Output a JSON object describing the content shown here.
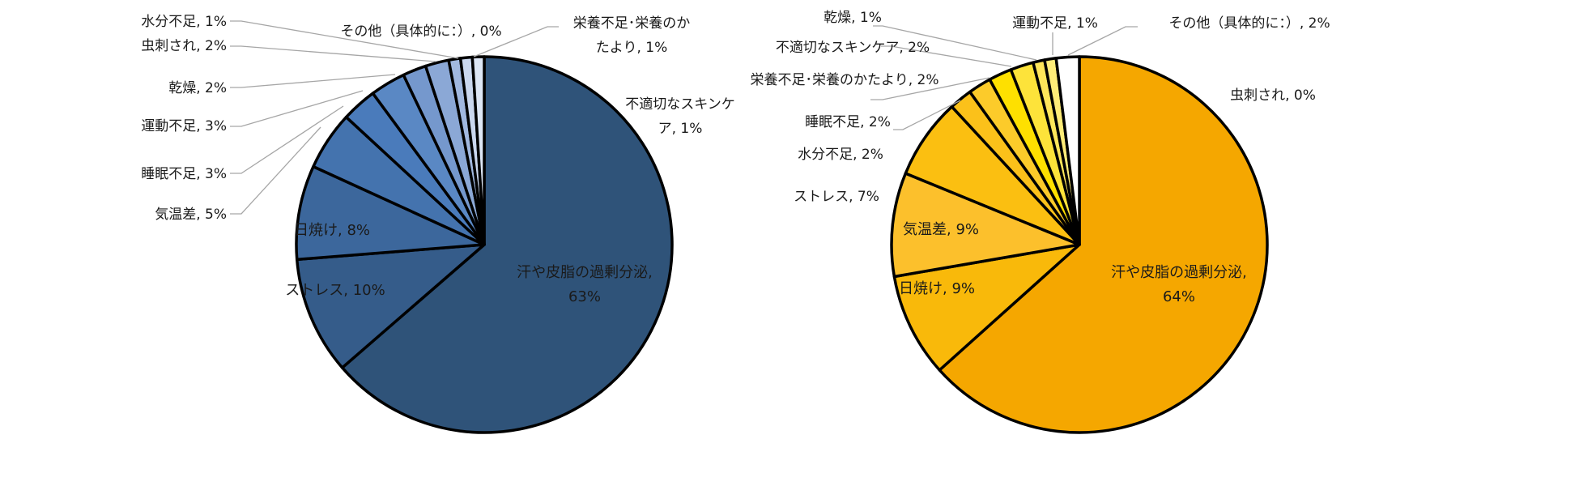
{
  "chart_data": [
    {
      "type": "pie",
      "title": "",
      "legend": "none",
      "colors": {
        "汗や皮脂の過剰分泌": "#2f5379",
        "ストレス": "#355c8a",
        "日焼け": "#3c679c",
        "気温差": "#4473ae",
        "睡眠不足": "#4a7bbb",
        "運動不足": "#5a88c4",
        "乾燥": "#7598cd",
        "虫刺され": "#8ba8d6",
        "水分不足": "#a1b8df",
        "その他（具体的に：）": "#b6c8e7",
        "栄養不足･栄養のかたより": "#cad7ee",
        "不適切なスキンケア": "#dde6f5"
      },
      "slices": [
        {
          "label": "汗や皮脂の過剰分泌",
          "value": 63,
          "text": "汗や皮脂の過剰分泌, 63%"
        },
        {
          "label": "ストレス",
          "value": 10,
          "text": "ストレス, 10%"
        },
        {
          "label": "日焼け",
          "value": 8,
          "text": "日焼け, 8%"
        },
        {
          "label": "気温差",
          "value": 5,
          "text": "気温差, 5%"
        },
        {
          "label": "睡眠不足",
          "value": 3,
          "text": "睡眠不足, 3%"
        },
        {
          "label": "運動不足",
          "value": 3,
          "text": "運動不足, 3%"
        },
        {
          "label": "乾燥",
          "value": 2,
          "text": "乾燥, 2%"
        },
        {
          "label": "虫刺され",
          "value": 2,
          "text": "虫刺され, 2%"
        },
        {
          "label": "水分不足",
          "value": 1,
          "text": "水分不足, 1%"
        },
        {
          "label": "その他（具体的に：）",
          "value": 0,
          "text": "その他（具体的に：）, 0%"
        },
        {
          "label": "栄養不足･栄養のかたより",
          "value": 1,
          "text": "栄養不足･栄養のかたより, 1%"
        },
        {
          "label": "不適切なスキンケア",
          "value": 1,
          "text": "不適切なスキンケア, 1%"
        }
      ]
    },
    {
      "type": "pie",
      "title": "",
      "legend": "none",
      "colors": {
        "汗や皮脂の過剰分泌": "#f5a700",
        "日焼け": "#f9b90a",
        "気温差": "#fcc02c",
        "ストレス": "#fbbf11",
        "水分不足": "#fbc11a",
        "睡眠不足": "#fccb2a",
        "栄養不足･栄養のかたより": "#fee000",
        "不適切なスキンケア": "#fde33a",
        "乾燥": "#fee65a",
        "運動不足": "#feec78",
        "その他（具体的に：）": "#ffffff",
        "虫刺され": "#fff5b0"
      },
      "slices": [
        {
          "label": "汗や皮脂の過剰分泌",
          "value": 64,
          "text": "汗や皮脂の過剰分泌, 64%"
        },
        {
          "label": "日焼け",
          "value": 9,
          "text": "日焼け, 9%"
        },
        {
          "label": "気温差",
          "value": 9,
          "text": "気温差, 9%"
        },
        {
          "label": "ストレス",
          "value": 7,
          "text": "ストレス, 7%"
        },
        {
          "label": "水分不足",
          "value": 2,
          "text": "水分不足, 2%"
        },
        {
          "label": "睡眠不足",
          "value": 2,
          "text": "睡眠不足, 2%"
        },
        {
          "label": "栄養不足･栄養のかたより",
          "value": 2,
          "text": "栄養不足･栄養のかたより, 2%"
        },
        {
          "label": "不適切なスキンケア",
          "value": 2,
          "text": "不適切なスキンケア, 2%"
        },
        {
          "label": "乾燥",
          "value": 1,
          "text": "乾燥, 1%"
        },
        {
          "label": "運動不足",
          "value": 1,
          "text": "運動不足, 1%"
        },
        {
          "label": "その他（具体的に：）",
          "value": 2,
          "text": "その他（具体的に：）, 2%"
        },
        {
          "label": "虫刺され",
          "value": 0,
          "text": "虫刺され, 0%"
        }
      ]
    }
  ]
}
